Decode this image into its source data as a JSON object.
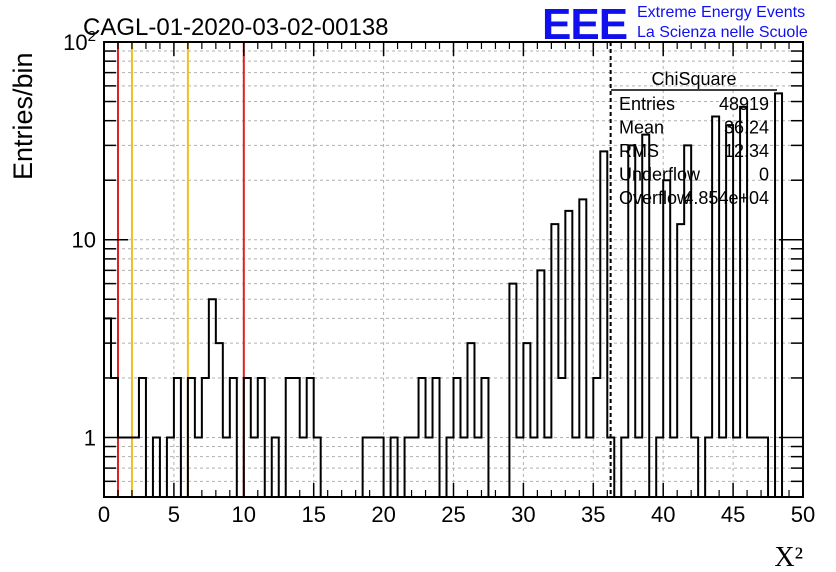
{
  "chart_data": {
    "type": "bar",
    "title": "CAGL-01-2020-03-02-00138",
    "xlabel": "X²",
    "ylabel": "Entries/bin",
    "xlim": [
      0,
      50
    ],
    "ylim": [
      0.5,
      100
    ],
    "yscale": "log",
    "grid": true,
    "bin_width": 0.5,
    "x_ticks": [
      "0",
      "5",
      "10",
      "15",
      "20",
      "25",
      "30",
      "35",
      "40",
      "45",
      "50"
    ],
    "y_ticks": [
      {
        "value": 1,
        "label": "1"
      },
      {
        "value": 10,
        "label": "10"
      },
      {
        "value": 100,
        "label": "10²"
      }
    ],
    "bins": [
      {
        "x": 0.0,
        "y": 4
      },
      {
        "x": 0.5,
        "y": 2
      },
      {
        "x": 1.0,
        "y": 1
      },
      {
        "x": 1.5,
        "y": 1
      },
      {
        "x": 2.0,
        "y": 1
      },
      {
        "x": 2.5,
        "y": 2
      },
      {
        "x": 3.0,
        "y": 0
      },
      {
        "x": 3.5,
        "y": 1
      },
      {
        "x": 4.0,
        "y": 0
      },
      {
        "x": 4.5,
        "y": 1
      },
      {
        "x": 5.0,
        "y": 2
      },
      {
        "x": 5.5,
        "y": 0
      },
      {
        "x": 6.0,
        "y": 2
      },
      {
        "x": 6.5,
        "y": 1
      },
      {
        "x": 7.0,
        "y": 2
      },
      {
        "x": 7.5,
        "y": 5
      },
      {
        "x": 8.0,
        "y": 3
      },
      {
        "x": 8.5,
        "y": 1
      },
      {
        "x": 9.0,
        "y": 2
      },
      {
        "x": 9.5,
        "y": 0
      },
      {
        "x": 10.0,
        "y": 2
      },
      {
        "x": 10.5,
        "y": 1
      },
      {
        "x": 11.0,
        "y": 2
      },
      {
        "x": 11.5,
        "y": 0
      },
      {
        "x": 12.0,
        "y": 1
      },
      {
        "x": 12.5,
        "y": 0
      },
      {
        "x": 13.0,
        "y": 2
      },
      {
        "x": 13.5,
        "y": 2
      },
      {
        "x": 14.0,
        "y": 1
      },
      {
        "x": 14.5,
        "y": 2
      },
      {
        "x": 15.0,
        "y": 1
      },
      {
        "x": 15.5,
        "y": 0
      },
      {
        "x": 16.0,
        "y": 0
      },
      {
        "x": 16.5,
        "y": 0
      },
      {
        "x": 17.0,
        "y": 0
      },
      {
        "x": 17.5,
        "y": 0
      },
      {
        "x": 18.0,
        "y": 0
      },
      {
        "x": 18.5,
        "y": 1
      },
      {
        "x": 19.0,
        "y": 1
      },
      {
        "x": 19.5,
        "y": 1
      },
      {
        "x": 20.0,
        "y": 0
      },
      {
        "x": 20.5,
        "y": 1
      },
      {
        "x": 21.0,
        "y": 0
      },
      {
        "x": 21.5,
        "y": 1
      },
      {
        "x": 22.0,
        "y": 1
      },
      {
        "x": 22.5,
        "y": 2
      },
      {
        "x": 23.0,
        "y": 1
      },
      {
        "x": 23.5,
        "y": 2
      },
      {
        "x": 24.0,
        "y": 0
      },
      {
        "x": 24.5,
        "y": 1
      },
      {
        "x": 25.0,
        "y": 2
      },
      {
        "x": 25.5,
        "y": 1
      },
      {
        "x": 26.0,
        "y": 3
      },
      {
        "x": 26.5,
        "y": 1
      },
      {
        "x": 27.0,
        "y": 2
      },
      {
        "x": 27.5,
        "y": 0
      },
      {
        "x": 28.0,
        "y": 0
      },
      {
        "x": 28.5,
        "y": 0
      },
      {
        "x": 29.0,
        "y": 6
      },
      {
        "x": 29.5,
        "y": 1
      },
      {
        "x": 30.0,
        "y": 3
      },
      {
        "x": 30.5,
        "y": 1
      },
      {
        "x": 31.0,
        "y": 7
      },
      {
        "x": 31.5,
        "y": 1
      },
      {
        "x": 32.0,
        "y": 12
      },
      {
        "x": 32.5,
        "y": 2
      },
      {
        "x": 33.0,
        "y": 14
      },
      {
        "x": 33.5,
        "y": 1
      },
      {
        "x": 34.0,
        "y": 16
      },
      {
        "x": 34.5,
        "y": 1
      },
      {
        "x": 35.0,
        "y": 2
      },
      {
        "x": 35.5,
        "y": 28
      },
      {
        "x": 36.0,
        "y": 1
      },
      {
        "x": 36.5,
        "y": 0
      },
      {
        "x": 37.0,
        "y": 1
      },
      {
        "x": 37.5,
        "y": 30
      },
      {
        "x": 38.0,
        "y": 1
      },
      {
        "x": 38.5,
        "y": 34
      },
      {
        "x": 39.0,
        "y": 0
      },
      {
        "x": 39.5,
        "y": 1
      },
      {
        "x": 40.0,
        "y": 20
      },
      {
        "x": 40.5,
        "y": 1
      },
      {
        "x": 41.0,
        "y": 12
      },
      {
        "x": 41.5,
        "y": 30
      },
      {
        "x": 42.0,
        "y": 1
      },
      {
        "x": 42.5,
        "y": 0
      },
      {
        "x": 43.0,
        "y": 1
      },
      {
        "x": 43.5,
        "y": 42
      },
      {
        "x": 44.0,
        "y": 1
      },
      {
        "x": 44.5,
        "y": 38
      },
      {
        "x": 45.0,
        "y": 1
      },
      {
        "x": 45.5,
        "y": 47
      },
      {
        "x": 46.0,
        "y": 1
      },
      {
        "x": 46.5,
        "y": 1
      },
      {
        "x": 47.0,
        "y": 1
      },
      {
        "x": 47.5,
        "y": 0
      },
      {
        "x": 48.0,
        "y": 55
      },
      {
        "x": 48.5,
        "y": 0
      },
      {
        "x": 49.0,
        "y": 0
      },
      {
        "x": 49.5,
        "y": 0
      }
    ],
    "reference_lines": [
      {
        "x": 1,
        "color": "#e02020"
      },
      {
        "x": 2,
        "color": "#f0c020"
      },
      {
        "x": 6,
        "color": "#f0c020"
      },
      {
        "x": 10,
        "color": "#e02020"
      },
      {
        "x": 36.24,
        "color": "#000000",
        "style": "dashed"
      }
    ],
    "stats_box": {
      "name": "ChiSquare",
      "rows": [
        {
          "label": "Entries",
          "value": "48919"
        },
        {
          "label": "Mean",
          "value": "36.24"
        },
        {
          "label": "RMS",
          "value": "12.34"
        },
        {
          "label": "Underflow",
          "value": "0"
        },
        {
          "label": "Overflow",
          "value": "4.854e+04"
        }
      ]
    }
  },
  "logo": {
    "mark": "EEE",
    "line1": "Extreme Energy Events",
    "line2": "La Scienza nelle Scuole",
    "color": "#1010ee"
  }
}
